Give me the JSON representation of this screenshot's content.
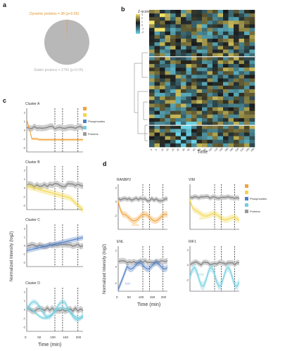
{
  "panels": {
    "a": {
      "letter": "a"
    },
    "b": {
      "letter": "b"
    },
    "c": {
      "letter": "c"
    },
    "d": {
      "letter": "d"
    }
  },
  "pie": {
    "dynamic_label": "Dynamic proteins = 38 (p<0.05)",
    "stable_label": "Stable proteins = 2750 (p>0.05)",
    "slices": [
      {
        "name": "Dynamic proteins",
        "value": 38,
        "color": "#f2a33a"
      },
      {
        "name": "Stable proteins",
        "value": 2750,
        "color": "#b8b8b8"
      }
    ]
  },
  "heatmap": {
    "legend_title": "Z-score",
    "legend_ticks": [
      "3",
      "2",
      "1",
      "0",
      "-1",
      "-2"
    ],
    "xlabel": "Time",
    "x_ticks": [
      "0",
      "5",
      "10",
      "15",
      "20",
      "25",
      "30",
      "40",
      "50",
      "60",
      "80",
      "100",
      "120",
      "140",
      "160",
      "180",
      "200",
      "220",
      "240",
      "260"
    ],
    "colors": {
      "high": "#f5e36a",
      "mid": "#1a1a1a",
      "low": "#6ad2e6"
    }
  },
  "clusters": {
    "A": {
      "title": "Cluster A",
      "color": "#f2a33a"
    },
    "B": {
      "title": "Cluster B",
      "color": "#f2d64a"
    },
    "C": {
      "title": "Cluster C",
      "color": "#4f7fc6"
    },
    "D": {
      "title": "Cluster D",
      "color": "#73cfe0"
    },
    "legend": [
      {
        "label": "",
        "color": "#f2a33a"
      },
      {
        "label": "",
        "color": "#f2d64a"
      },
      {
        "label": "Phosphosites",
        "color": "#4f7fc6"
      },
      {
        "label": "",
        "color": "#73cfe0"
      },
      {
        "label": "Proteins",
        "color": "#999999"
      }
    ],
    "y_ticks": [
      "2",
      "1",
      "0",
      "-1",
      "-2"
    ],
    "x_ticks": [
      "0",
      "50",
      "100",
      "150",
      "200"
    ],
    "ylabel": "Normalized Intensity (log2)",
    "xlabel": "Time (min)"
  },
  "panel_d": {
    "proteins": [
      {
        "name": "RANBP2",
        "color": "#f2a33a",
        "site": "S1234"
      },
      {
        "name": "VIM",
        "color": "#f2d64a",
        "site": "S83"
      },
      {
        "name": "ENL",
        "color": "#4f7fc6",
        "site": "T117"
      },
      {
        "name": "RIF1",
        "color": "#73cfe0",
        "site": "S2205"
      }
    ],
    "legend": [
      {
        "label": "",
        "color": "#f2a33a"
      },
      {
        "label": "",
        "color": "#f2d64a"
      },
      {
        "label": "Phosphosites",
        "color": "#4f7fc6"
      },
      {
        "label": "",
        "color": "#73cfe0"
      },
      {
        "label": "Proteins",
        "color": "#999999"
      }
    ],
    "ylabel": "Normalized Intensity (log2)",
    "xlabel": "Time (min)",
    "x_ticks": [
      "0",
      "50",
      "100",
      "150",
      "200"
    ]
  }
}
